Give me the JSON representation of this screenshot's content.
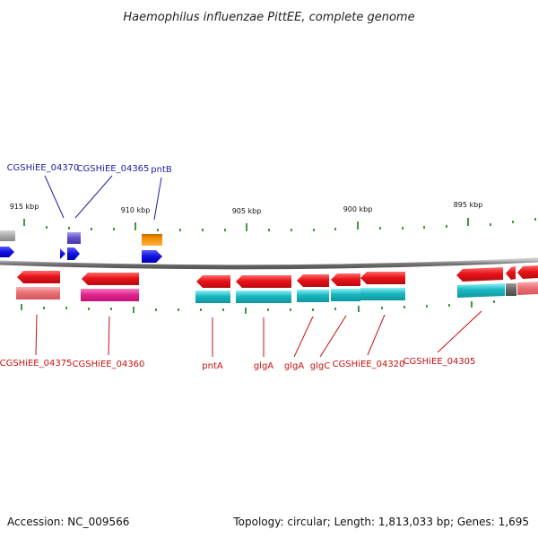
{
  "title": "Haemophilus influenzae PittEE, complete genome",
  "footer": {
    "accession": "Accession: NC_009566",
    "summary": "Topology: circular; Length: 1,813,033 bp; Genes: 1,695"
  },
  "scale": {
    "tick_labels": [
      "915 kbp",
      "910 kbp",
      "905 kbp",
      "900 kbp",
      "895 kbp"
    ]
  },
  "labels_top": [
    "CGSHiEE_04370",
    "CGSHiEE_04365",
    "pntB"
  ],
  "labels_bottom": [
    "CGSHiEE_04375",
    "CGSHiEE_04360",
    "pntA",
    "glgA",
    "glgA",
    "glgC",
    "CGSHiEE_04320",
    "CGSHiEE_04305"
  ],
  "colors": {
    "gene_red": "#e8141a",
    "rna_pink": "#e86e74",
    "rna_magenta": "#e0208a",
    "rna_cyan": "#1ab8c2",
    "gene_blue": "#1010e0",
    "gene_purple": "#6050c8",
    "gene_orange": "#f08a00",
    "gene_gray": "#a9a9a9",
    "backbone": "#808080",
    "tick_green": "#1a7a1a",
    "label_blue": "#1f1fa8",
    "label_red": "#c81010"
  }
}
